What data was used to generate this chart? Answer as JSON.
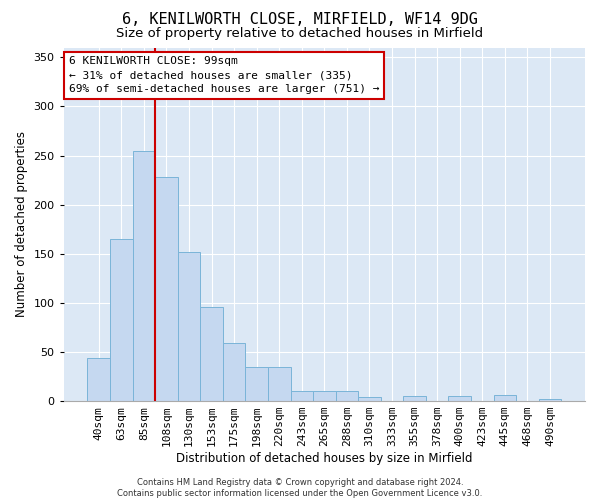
{
  "title_line1": "6, KENILWORTH CLOSE, MIRFIELD, WF14 9DG",
  "title_line2": "Size of property relative to detached houses in Mirfield",
  "xlabel": "Distribution of detached houses by size in Mirfield",
  "ylabel": "Number of detached properties",
  "categories": [
    "40sqm",
    "63sqm",
    "85sqm",
    "108sqm",
    "130sqm",
    "153sqm",
    "175sqm",
    "198sqm",
    "220sqm",
    "243sqm",
    "265sqm",
    "288sqm",
    "310sqm",
    "333sqm",
    "355sqm",
    "378sqm",
    "400sqm",
    "423sqm",
    "445sqm",
    "468sqm",
    "490sqm"
  ],
  "values": [
    44,
    165,
    255,
    228,
    152,
    96,
    59,
    35,
    35,
    10,
    10,
    10,
    4,
    0,
    5,
    0,
    5,
    0,
    6,
    0,
    2
  ],
  "bar_color": "#c5d8f0",
  "bar_edge_color": "#7ab4d8",
  "vline_x": 2.5,
  "vline_color": "#cc0000",
  "annotation_box_text": "6 KENILWORTH CLOSE: 99sqm\n← 31% of detached houses are smaller (335)\n69% of semi-detached houses are larger (751) →",
  "ylim": [
    0,
    360
  ],
  "yticks": [
    0,
    50,
    100,
    150,
    200,
    250,
    300,
    350
  ],
  "background_color": "#dce8f5",
  "grid_color": "#ffffff",
  "footer_text": "Contains HM Land Registry data © Crown copyright and database right 2024.\nContains public sector information licensed under the Open Government Licence v3.0.",
  "title_fontsize": 11,
  "subtitle_fontsize": 9.5,
  "xlabel_fontsize": 8.5,
  "ylabel_fontsize": 8.5,
  "tick_fontsize": 8,
  "annotation_fontsize": 8,
  "footer_fontsize": 6
}
